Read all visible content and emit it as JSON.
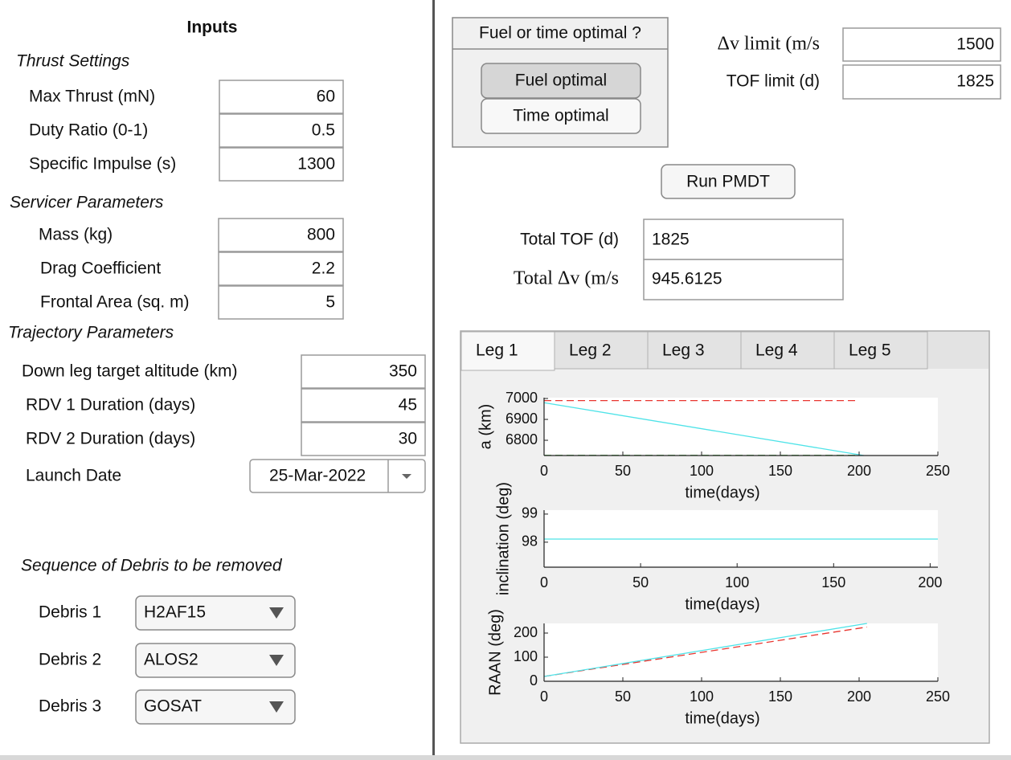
{
  "inputs": {
    "title": "Inputs",
    "sections": [
      {
        "title": "Thrust Settings",
        "fields": [
          {
            "label": "Max Thrust (mN)",
            "value": "60"
          },
          {
            "label": "Duty Ratio (0-1)",
            "value": "0.5"
          },
          {
            "label": "Specific Impulse (s)",
            "value": "1300"
          }
        ]
      },
      {
        "title": "Servicer Parameters",
        "fields": [
          {
            "label": "Mass (kg)",
            "value": "800"
          },
          {
            "label": "Drag Coefficient",
            "value": "2.2"
          },
          {
            "label": "Frontal Area  (sq. m)",
            "value": "5"
          }
        ]
      },
      {
        "title": "Trajectory Parameters",
        "fields": [
          {
            "label": "Down leg target altitude (km)",
            "value": "350"
          },
          {
            "label": "RDV 1 Duration (days)",
            "value": "45"
          },
          {
            "label": "RDV 2 Duration (days)",
            "value": "30"
          }
        ]
      }
    ],
    "launch_date": {
      "label": "Launch Date",
      "value": "25-Mar-2022"
    },
    "sequence": {
      "title": "Sequence of Debris to be removed",
      "debris": [
        {
          "label": "Debris 1",
          "value": "H2AF15"
        },
        {
          "label": "Debris 2",
          "value": "ALOS2"
        },
        {
          "label": "Debris 3",
          "value": "GOSAT"
        }
      ]
    }
  },
  "mode": {
    "title": "Fuel or time optimal ?",
    "options": [
      "Fuel optimal",
      "Time optimal"
    ],
    "selected": 0
  },
  "limits": [
    {
      "label": "Δv limit (m/s",
      "value": "1500"
    },
    {
      "label": "TOF limit (d)",
      "value": "1825"
    }
  ],
  "run_button": "Run PMDT",
  "results": [
    {
      "label": "Total TOF (d)",
      "value": "1825"
    },
    {
      "label": "Total Δv (m/s",
      "value": "945.6125"
    }
  ],
  "tabs": {
    "labels": [
      "Leg 1",
      "Leg 2",
      "Leg 3",
      "Leg 4",
      "Leg 5"
    ],
    "selected": 0
  },
  "chart_data": [
    {
      "type": "line",
      "xlabel": "time(days)",
      "ylabel": "a (km)",
      "xlim": [
        0,
        250
      ],
      "xticks": [
        0,
        50,
        100,
        150,
        200,
        250
      ],
      "ylim": [
        6727,
        7004
      ],
      "yticks": [
        6800,
        6900,
        7000
      ],
      "series": [
        {
          "color": "#e8352f",
          "dashed": true,
          "x": [
            0,
            200
          ],
          "values": [
            6990,
            6990
          ]
        },
        {
          "color": "#4fe3e8",
          "dashed": false,
          "x": [
            0,
            203
          ],
          "values": [
            6980,
            6727
          ]
        },
        {
          "color": "#3aa832",
          "dashed": true,
          "x": [
            0,
            200
          ],
          "values": [
            6728,
            6728
          ]
        }
      ]
    },
    {
      "type": "line",
      "xlabel": "time(days)",
      "ylabel": "inclination (deg)",
      "xlim": [
        0,
        204
      ],
      "xticks": [
        0,
        50,
        100,
        150,
        200
      ],
      "ylim": [
        97.11,
        99.14
      ],
      "yticks": [
        98,
        99
      ],
      "series": [
        {
          "color": "#4fe3e8",
          "dashed": false,
          "x": [
            0,
            204
          ],
          "values": [
            98.11,
            98.11
          ]
        }
      ]
    },
    {
      "type": "line",
      "xlabel": "time(days)",
      "ylabel": "RAAN (deg)",
      "xlim": [
        0,
        250
      ],
      "xticks": [
        0,
        50,
        100,
        150,
        200,
        250
      ],
      "ylim": [
        0,
        240
      ],
      "yticks": [
        0,
        100,
        200
      ],
      "series": [
        {
          "color": "#e8352f",
          "dashed": true,
          "x": [
            0,
            205
          ],
          "values": [
            20,
            225
          ]
        },
        {
          "color": "#4fe3e8",
          "dashed": false,
          "x": [
            0,
            205
          ],
          "values": [
            20,
            240
          ]
        }
      ]
    }
  ]
}
